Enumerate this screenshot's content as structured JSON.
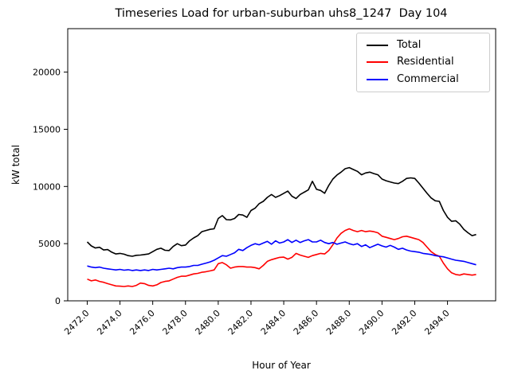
{
  "chart_data": {
    "type": "line",
    "title": "Timeseries Load for urban-suburban uhs8_1247  Day 104",
    "xlabel": "Hour of Year",
    "ylabel": "kW total",
    "grid": false,
    "legend_position": "upper right",
    "xlim": [
      2470.81,
      2496.94
    ],
    "ylim": [
      0,
      23800
    ],
    "yticks": [
      0,
      5000,
      10000,
      15000,
      20000
    ],
    "ytick_labels": [
      "0",
      "5000",
      "10000",
      "15000",
      "20000"
    ],
    "xticks": [
      2472,
      2474,
      2476,
      2478,
      2480,
      2482,
      2484,
      2486,
      2488,
      2490,
      2492,
      2494
    ],
    "xtick_labels": [
      "2472.0",
      "2474.0",
      "2476.0",
      "2478.0",
      "2480.0",
      "2482.0",
      "2484.0",
      "2486.0",
      "2488.0",
      "2490.0",
      "2492.0",
      "2494.0"
    ],
    "x": [
      2472.0,
      2472.25,
      2472.5,
      2472.75,
      2473.0,
      2473.25,
      2473.5,
      2473.75,
      2474.0,
      2474.25,
      2474.5,
      2474.75,
      2475.0,
      2475.25,
      2475.5,
      2475.75,
      2476.0,
      2476.25,
      2476.5,
      2476.75,
      2477.0,
      2477.25,
      2477.5,
      2477.75,
      2478.0,
      2478.25,
      2478.5,
      2478.75,
      2479.0,
      2479.25,
      2479.5,
      2479.75,
      2480.0,
      2480.25,
      2480.5,
      2480.75,
      2481.0,
      2481.25,
      2481.5,
      2481.75,
      2482.0,
      2482.25,
      2482.5,
      2482.75,
      2483.0,
      2483.25,
      2483.5,
      2483.75,
      2484.0,
      2484.25,
      2484.5,
      2484.75,
      2485.0,
      2485.25,
      2485.5,
      2485.75,
      2486.0,
      2486.25,
      2486.5,
      2486.75,
      2487.0,
      2487.25,
      2487.5,
      2487.75,
      2488.0,
      2488.25,
      2488.5,
      2488.75,
      2489.0,
      2489.25,
      2489.5,
      2489.75,
      2490.0,
      2490.25,
      2490.5,
      2490.75,
      2491.0,
      2491.25,
      2491.5,
      2491.75,
      2492.0,
      2492.25,
      2492.5,
      2492.75,
      2493.0,
      2493.25,
      2493.5,
      2493.75,
      2494.0,
      2494.25,
      2494.5,
      2494.75,
      2495.0,
      2495.25,
      2495.5,
      2495.75
    ],
    "series": [
      {
        "name": "Total",
        "color": "#000000",
        "values": [
          5150,
          4800,
          4620,
          4680,
          4450,
          4480,
          4250,
          4100,
          4150,
          4080,
          3950,
          3900,
          3980,
          4000,
          4050,
          4100,
          4300,
          4500,
          4600,
          4420,
          4400,
          4750,
          5000,
          4820,
          4880,
          5250,
          5500,
          5700,
          6050,
          6150,
          6250,
          6300,
          7200,
          7450,
          7100,
          7080,
          7200,
          7550,
          7500,
          7300,
          7900,
          8100,
          8500,
          8700,
          9050,
          9300,
          9050,
          9200,
          9400,
          9600,
          9150,
          8950,
          9300,
          9500,
          9700,
          10450,
          9750,
          9650,
          9400,
          10100,
          10650,
          11000,
          11250,
          11550,
          11650,
          11480,
          11320,
          11020,
          11180,
          11250,
          11130,
          11020,
          10650,
          10500,
          10400,
          10300,
          10250,
          10450,
          10700,
          10750,
          10700,
          10300,
          9850,
          9400,
          9000,
          8750,
          8700,
          7900,
          7300,
          6950,
          7000,
          6700,
          6250,
          5950,
          5700,
          5800
        ]
      },
      {
        "name": "Residential",
        "color": "#ff0000",
        "values": [
          1900,
          1750,
          1820,
          1700,
          1620,
          1500,
          1400,
          1300,
          1280,
          1250,
          1300,
          1250,
          1350,
          1550,
          1500,
          1350,
          1300,
          1400,
          1600,
          1700,
          1750,
          1900,
          2050,
          2150,
          2150,
          2250,
          2350,
          2400,
          2500,
          2550,
          2620,
          2700,
          3250,
          3350,
          3150,
          2850,
          2950,
          3000,
          3000,
          2950,
          2950,
          2900,
          2800,
          3100,
          3450,
          3600,
          3700,
          3800,
          3820,
          3650,
          3800,
          4150,
          4000,
          3900,
          3800,
          3950,
          4050,
          4150,
          4100,
          4400,
          4900,
          5500,
          5900,
          6150,
          6300,
          6150,
          6050,
          6150,
          6050,
          6100,
          6050,
          5950,
          5650,
          5550,
          5450,
          5350,
          5450,
          5600,
          5650,
          5550,
          5450,
          5350,
          5100,
          4700,
          4300,
          4050,
          3900,
          3300,
          2800,
          2450,
          2300,
          2250,
          2350,
          2300,
          2250,
          2300
        ]
      },
      {
        "name": "Commercial",
        "color": "#0000ff",
        "values": [
          3050,
          2950,
          2900,
          2950,
          2850,
          2800,
          2750,
          2700,
          2750,
          2680,
          2720,
          2650,
          2700,
          2650,
          2700,
          2650,
          2750,
          2700,
          2750,
          2800,
          2850,
          2800,
          2900,
          2950,
          2950,
          3000,
          3100,
          3100,
          3200,
          3300,
          3400,
          3550,
          3750,
          3950,
          3900,
          4050,
          4200,
          4500,
          4400,
          4650,
          4850,
          5000,
          4900,
          5050,
          5200,
          4950,
          5250,
          5050,
          5150,
          5350,
          5100,
          5300,
          5100,
          5250,
          5350,
          5150,
          5150,
          5300,
          5100,
          5000,
          5100,
          4950,
          5050,
          5150,
          5000,
          4900,
          5000,
          4750,
          4900,
          4650,
          4800,
          4950,
          4800,
          4700,
          4850,
          4700,
          4500,
          4600,
          4450,
          4350,
          4300,
          4250,
          4150,
          4100,
          4050,
          3950,
          3900,
          3850,
          3750,
          3650,
          3550,
          3500,
          3450,
          3350,
          3250,
          3150
        ]
      }
    ],
    "colors": {
      "background": "#ffffff",
      "frame": "#000000",
      "legend_border": "#cccccc"
    }
  }
}
